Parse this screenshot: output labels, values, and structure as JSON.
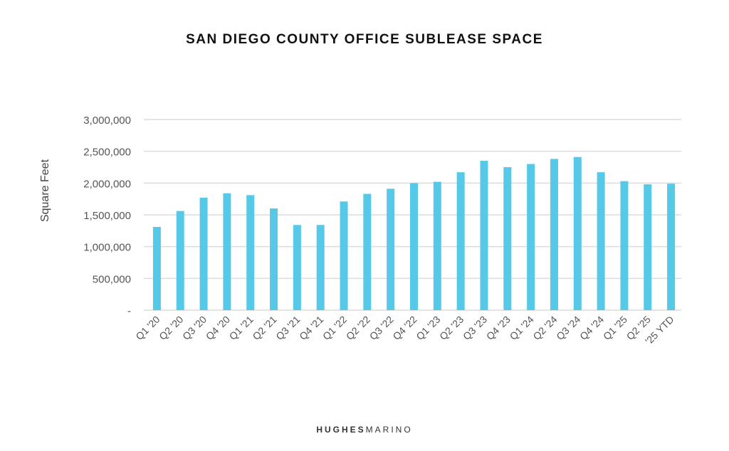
{
  "chart_data": {
    "type": "bar",
    "title": "SAN DIEGO COUNTY OFFICE SUBLEASE SPACE",
    "xlabel": "",
    "ylabel": "Square Feet",
    "ylim": [
      0,
      3000000
    ],
    "yticks": [
      0,
      500000,
      1000000,
      1500000,
      2000000,
      2500000,
      3000000
    ],
    "ytick_labels": [
      "-",
      "500,000",
      "1,000,000",
      "1,500,000",
      "2,000,000",
      "2,500,000",
      "3,000,000"
    ],
    "grid": true,
    "bar_color": "#56C8E8",
    "categories": [
      "Q1 '20",
      "Q2 '20",
      "Q3 '20",
      "Q4 '20",
      "Q1 '21",
      "Q2 '21",
      "Q3 '21",
      "Q4 '21",
      "Q1 '22",
      "Q2 '22",
      "Q3 '22",
      "Q4 '22",
      "Q1 '23",
      "Q2 '23",
      "Q3 '23",
      "Q4 '23",
      "Q1 '24",
      "Q2 '24",
      "Q3 '24",
      "Q4 '24",
      "Q1 '25",
      "Q2 '25",
      "'25 YTD"
    ],
    "values": [
      1310000,
      1560000,
      1770000,
      1840000,
      1810000,
      1600000,
      1340000,
      1340000,
      1710000,
      1830000,
      1910000,
      2000000,
      2020000,
      2170000,
      2350000,
      2250000,
      2300000,
      2380000,
      2410000,
      2170000,
      2030000,
      1980000,
      1990000
    ]
  },
  "footer": {
    "brand_bold": "HUGHES",
    "brand_light": "MARINO"
  }
}
